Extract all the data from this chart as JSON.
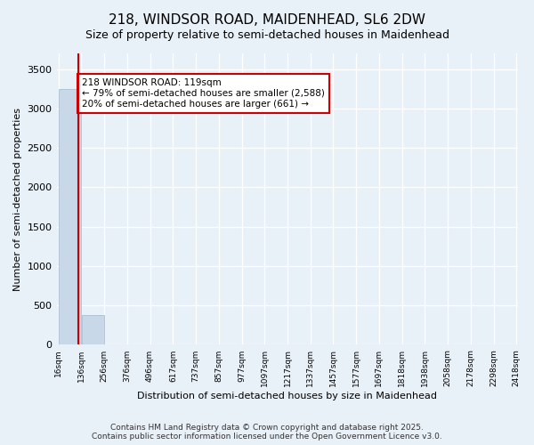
{
  "title": "218, WINDSOR ROAD, MAIDENHEAD, SL6 2DW",
  "subtitle": "Size of property relative to semi-detached houses in Maidenhead",
  "xlabel": "Distribution of semi-detached houses by size in Maidenhead",
  "ylabel": "Number of semi-detached properties",
  "footer": "Contains HM Land Registry data © Crown copyright and database right 2025.\nContains public sector information licensed under the Open Government Licence v3.0.",
  "bar_edges": [
    16,
    136,
    256,
    376,
    496,
    617,
    737,
    857,
    977,
    1097,
    1217,
    1337,
    1457,
    1577,
    1697,
    1818,
    1938,
    2058,
    2178,
    2298,
    2418
  ],
  "bar_heights": [
    3249,
    380,
    0,
    0,
    0,
    0,
    0,
    0,
    0,
    0,
    0,
    0,
    0,
    0,
    0,
    0,
    0,
    0,
    0,
    0
  ],
  "bar_color": "#c8d8e8",
  "bar_edgecolor": "#a0b8cc",
  "property_line_x": 119,
  "property_line_color": "#cc0000",
  "ylim": [
    0,
    3700
  ],
  "annotation_text": "218 WINDSOR ROAD: 119sqm\n← 79% of semi-detached houses are smaller (2,588)\n20% of semi-detached houses are larger (661) →",
  "background_color": "#e8f0f8",
  "plot_bg_color": "#e8f0f8",
  "grid_color": "#ffffff",
  "title_fontsize": 11,
  "subtitle_fontsize": 9,
  "yticks": [
    0,
    500,
    1000,
    1500,
    2000,
    2500,
    3000,
    3500
  ],
  "tick_labels": [
    "16sqm",
    "136sqm",
    "256sqm",
    "376sqm",
    "496sqm",
    "617sqm",
    "737sqm",
    "857sqm",
    "977sqm",
    "1097sqm",
    "1217sqm",
    "1337sqm",
    "1457sqm",
    "1577sqm",
    "1697sqm",
    "1818sqm",
    "1938sqm",
    "2058sqm",
    "2178sqm",
    "2298sqm",
    "2418sqm"
  ]
}
